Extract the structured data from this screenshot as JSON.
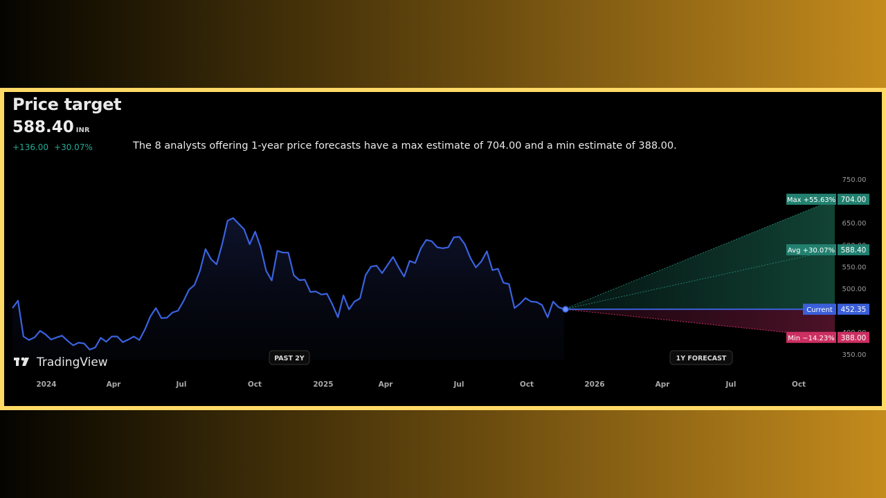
{
  "header": {
    "title": "Price target",
    "price": "588.40",
    "currency": "INR",
    "change_abs": "+136.00",
    "change_pct": "+30.07%",
    "description": "The 8 analysts offering 1-year price forecasts have a max estimate of 704.00 and a min estimate of 388.00."
  },
  "branding": {
    "logo_text": "TradingView"
  },
  "chart_data": {
    "type": "line",
    "series": [
      {
        "values": [
          455,
          472,
          390,
          382,
          388,
          403,
          395,
          383,
          388,
          392,
          380,
          370,
          376,
          374,
          360,
          365,
          387,
          378,
          390,
          390,
          377,
          383,
          390,
          382,
          406,
          436,
          455,
          432,
          433,
          445,
          449,
          471,
          497,
          508,
          541,
          590,
          567,
          555,
          601,
          655,
          661,
          648,
          635,
          601,
          630,
          594,
          540,
          518,
          586,
          582,
          582,
          530,
          519,
          520,
          492,
          493,
          486,
          488,
          463,
          434,
          484,
          452,
          470,
          477,
          530,
          550,
          552,
          535,
          554,
          572,
          548,
          527,
          563,
          558,
          591,
          611,
          608,
          594,
          592,
          594,
          617,
          618,
          601,
          570,
          548,
          562,
          585,
          542,
          545,
          513,
          510,
          455,
          465,
          478,
          470,
          469,
          462,
          434,
          470,
          457,
          452.35
        ]
      }
    ],
    "forecast": {
      "current": 452.35,
      "max": 704.0,
      "avg": 588.4,
      "min": 388.0,
      "max_label": "Max +55.63%",
      "avg_label": "Avg +30.07%",
      "min_label": "Min −14.23%",
      "current_label": "Current",
      "current_value_label": "452.35",
      "max_value_label": "704.00",
      "avg_value_label": "588.40",
      "min_value_label": "388.00"
    },
    "x_ticks": [
      "2024",
      "Apr",
      "Jul",
      "Oct",
      "2025",
      "Apr",
      "Jul",
      "Oct",
      "2026",
      "Apr",
      "Jul",
      "Oct"
    ],
    "y_ticks": [
      "750.00",
      "650.00",
      "600.00",
      "550.00",
      "500.00",
      "400.00",
      "350.00"
    ],
    "ylim": [
      350,
      750
    ],
    "section_labels": [
      "PAST 2Y",
      "1Y FORECAST"
    ],
    "colors": {
      "line": "#3b63e0",
      "max": "#22806f",
      "avg": "#22806f",
      "min": "#cc2f62",
      "current": "#3b5fd9"
    }
  }
}
